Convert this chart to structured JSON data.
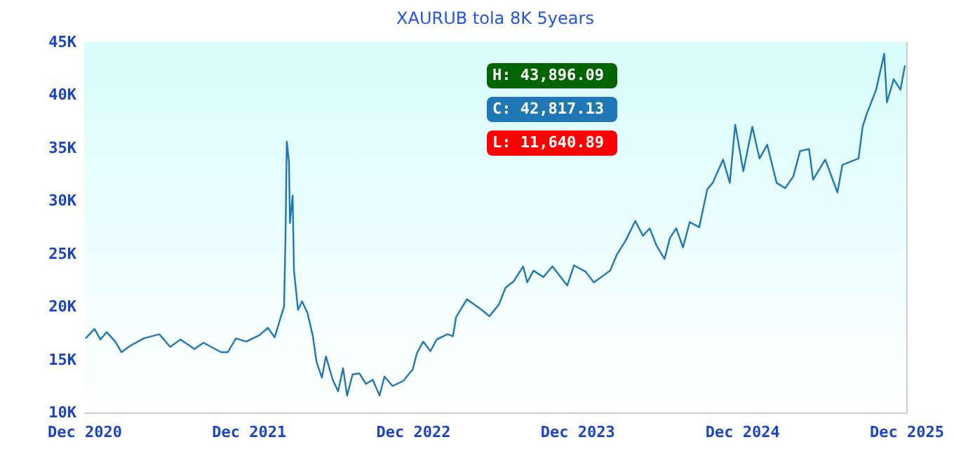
{
  "chart_data": {
    "type": "line",
    "title": "XAURUB tola 8K 5years",
    "x": [
      "2020-12-04",
      "2020-12-24",
      "2021-01-06",
      "2021-01-20",
      "2021-02-08",
      "2021-02-22",
      "2021-03-13",
      "2021-04-12",
      "2021-05-17",
      "2021-06-10",
      "2021-07-03",
      "2021-08-03",
      "2021-08-23",
      "2021-10-01",
      "2021-10-16",
      "2021-11-03",
      "2021-11-26",
      "2021-12-25",
      "2022-01-13",
      "2022-01-28",
      "2022-02-12",
      "2022-02-18",
      "2022-02-21",
      "2022-02-24",
      "2022-03-01",
      "2022-03-03",
      "2022-03-09",
      "2022-03-12",
      "2022-03-21",
      "2022-03-30",
      "2022-04-11",
      "2022-04-23",
      "2022-05-01",
      "2022-05-13",
      "2022-05-22",
      "2022-06-06",
      "2022-06-18",
      "2022-06-29",
      "2022-07-08",
      "2022-07-20",
      "2022-08-04",
      "2022-08-19",
      "2022-09-03",
      "2022-09-18",
      "2022-09-29",
      "2022-10-17",
      "2022-11-10",
      "2022-12-01",
      "2022-12-10",
      "2022-12-24",
      "2023-01-09",
      "2023-01-23",
      "2023-02-16",
      "2023-02-28",
      "2023-03-07",
      "2023-03-31",
      "2023-04-30",
      "2023-05-20",
      "2023-06-10",
      "2023-06-25",
      "2023-07-13",
      "2023-08-03",
      "2023-08-12",
      "2023-08-26",
      "2023-09-17",
      "2023-10-07",
      "2023-11-09",
      "2023-11-24",
      "2023-12-20",
      "2024-01-07",
      "2024-02-12",
      "2024-02-27",
      "2024-03-17",
      "2024-04-08",
      "2024-04-25",
      "2024-05-10",
      "2024-05-25",
      "2024-06-12",
      "2024-06-24",
      "2024-07-08",
      "2024-07-23",
      "2024-08-07",
      "2024-08-28",
      "2024-09-15",
      "2024-09-27",
      "2024-10-20",
      "2024-11-04",
      "2024-11-16",
      "2024-12-04",
      "2024-12-24",
      "2025-01-09",
      "2025-01-26",
      "2025-02-16",
      "2025-03-07",
      "2025-03-25",
      "2025-04-09",
      "2025-04-29",
      "2025-05-08",
      "2025-06-04",
      "2025-07-01",
      "2025-07-12",
      "2025-08-17",
      "2025-08-26",
      "2025-09-04",
      "2025-09-25",
      "2025-10-13",
      "2025-10-19",
      "2025-11-03",
      "2025-11-18",
      "2025-11-28"
    ],
    "series": [
      {
        "color": "#1f77b4",
        "values": [
          17000,
          17900,
          16900,
          17600,
          16700,
          15700,
          16300,
          17000,
          17400,
          16200,
          16900,
          16000,
          16600,
          15700,
          15700,
          17000,
          16700,
          17300,
          18000,
          17100,
          19200,
          20000,
          26200,
          35600,
          33600,
          27900,
          30500,
          23400,
          19700,
          20500,
          19400,
          17200,
          14800,
          13300,
          15300,
          13100,
          12000,
          14200,
          11600,
          13600,
          13700,
          12700,
          13100,
          11600,
          13400,
          12500,
          13000,
          14100,
          15600,
          16700,
          15800,
          16900,
          17400,
          17200,
          19000,
          20700,
          19800,
          19100,
          20200,
          21800,
          22400,
          23800,
          22300,
          23400,
          22800,
          23800,
          22000,
          23900,
          23300,
          22300,
          23400,
          24900,
          26200,
          28100,
          26700,
          27400,
          25800,
          24500,
          26500,
          27400,
          25600,
          28000,
          27500,
          31100,
          31700,
          33900,
          31700,
          37200,
          32800,
          37000,
          34000,
          35300,
          31700,
          31200,
          32300,
          34700,
          34900,
          32000,
          33900,
          30800,
          33400,
          34000,
          37000,
          38200,
          40500,
          43900,
          39300,
          41500,
          40500,
          42800
        ]
      }
    ],
    "xlim": [
      "2020-12-01",
      "2025-12-01"
    ],
    "xticks": [
      {
        "value": "2020-12-01",
        "label": "Dec 2020"
      },
      {
        "value": "2021-12-01",
        "label": "Dec 2021"
      },
      {
        "value": "2022-12-01",
        "label": "Dec 2022"
      },
      {
        "value": "2023-12-01",
        "label": "Dec 2023"
      },
      {
        "value": "2024-12-01",
        "label": "Dec 2024"
      },
      {
        "value": "2025-12-01",
        "label": "Dec 2025"
      }
    ],
    "ylim": [
      10000,
      45000
    ],
    "yticks": [
      {
        "value": 10000,
        "label": "10K"
      },
      {
        "value": 15000,
        "label": "15K"
      },
      {
        "value": 20000,
        "label": "20K"
      },
      {
        "value": 25000,
        "label": "25K"
      },
      {
        "value": 30000,
        "label": "30K"
      },
      {
        "value": 35000,
        "label": "35K"
      },
      {
        "value": 40000,
        "label": "40K"
      },
      {
        "value": 45000,
        "label": "45K"
      }
    ],
    "annotations": [
      "H: 43,896.09",
      "C: 42,817.13",
      "L: 11,640.89"
    ],
    "grid": "y",
    "marker": "none",
    "line_style": "solid"
  }
}
